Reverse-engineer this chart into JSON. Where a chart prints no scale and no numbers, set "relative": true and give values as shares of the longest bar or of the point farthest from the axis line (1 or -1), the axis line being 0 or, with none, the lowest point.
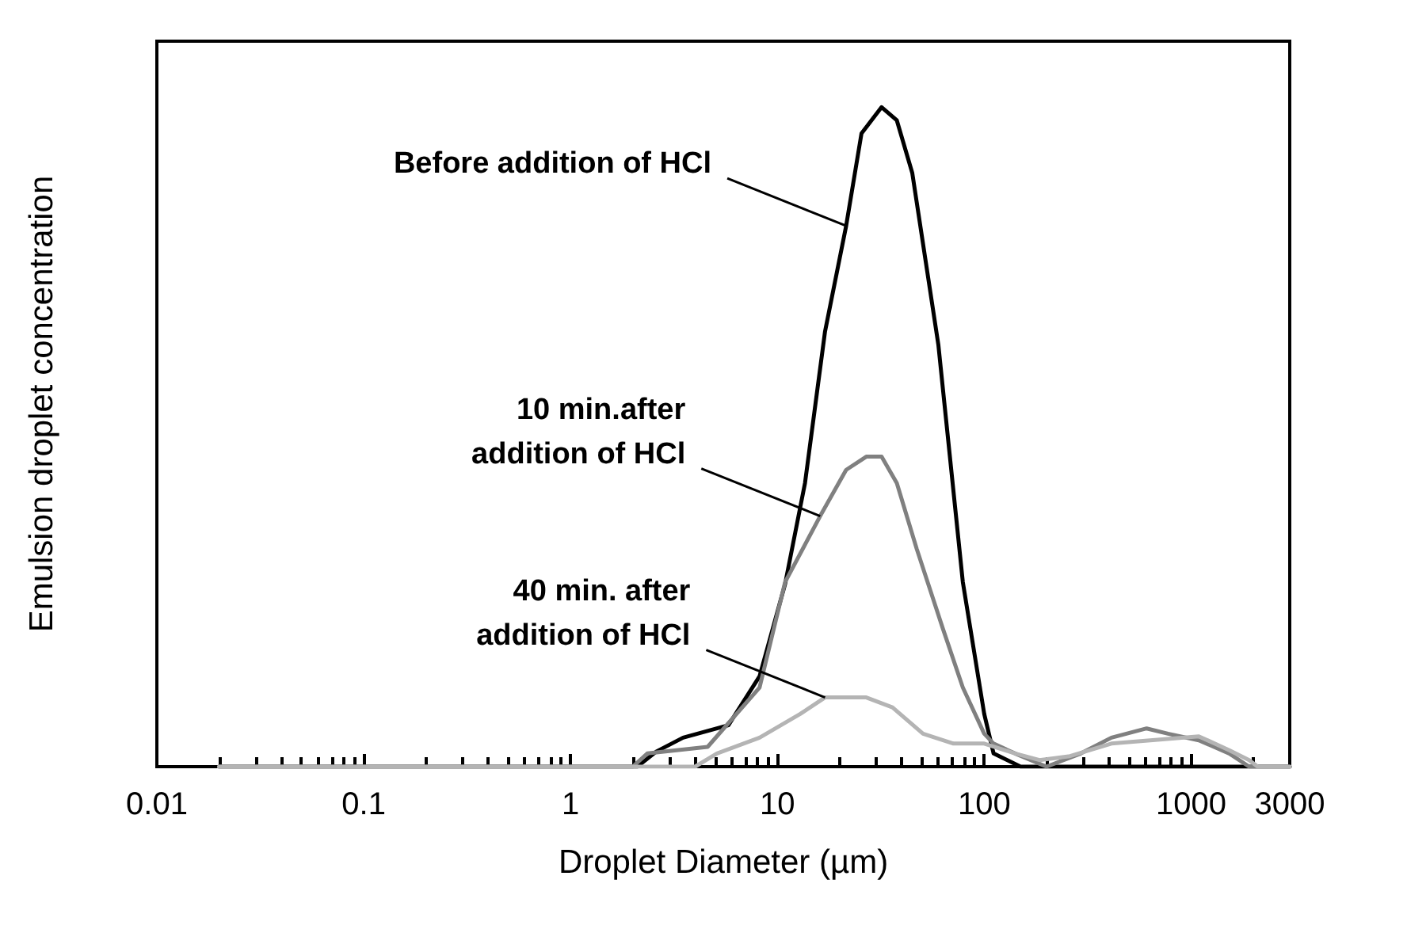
{
  "chart_data": {
    "type": "line",
    "relative": true,
    "xlabel": "Droplet Diameter (µm)",
    "ylabel": "Emulsion droplet concentration",
    "log": "x",
    "xlim": [
      0.01,
      3000
    ],
    "xticks": [
      0.01,
      0.1,
      1,
      10,
      100,
      1000,
      3000
    ],
    "grid": false,
    "marker": "none",
    "line_style": "solid",
    "series": [
      {
        "color": "#000000",
        "x": [
          0.02,
          2.1,
          2.6,
          3.5,
          5.8,
          8.2,
          10.9,
          13.6,
          17,
          21.5,
          25.5,
          31.9,
          37.8,
          44.9,
          60,
          78.8,
          100,
          111,
          150,
          3000
        ],
        "values": [
          0,
          0,
          0.023,
          0.044,
          0.063,
          0.137,
          0.277,
          0.43,
          0.66,
          0.82,
          0.96,
          1.0,
          0.98,
          0.9,
          0.64,
          0.28,
          0.08,
          0.02,
          0,
          0
        ]
      },
      {
        "color": "#808080",
        "x": [
          0.02,
          2.0,
          2.35,
          4.6,
          8.2,
          10.9,
          16.1,
          21.5,
          26.9,
          31.9,
          37.8,
          47.2,
          63,
          78.8,
          100,
          111,
          141,
          200,
          293,
          412,
          610,
          774,
          1090,
          1530,
          1910,
          3000
        ],
        "values": [
          0,
          0,
          0.02,
          0.03,
          0.12,
          0.28,
          0.38,
          0.45,
          0.47,
          0.47,
          0.43,
          0.33,
          0.21,
          0.12,
          0.05,
          0.035,
          0.02,
          0,
          0.02,
          0.044,
          0.058,
          0.05,
          0.04,
          0.02,
          0,
          0
        ]
      },
      {
        "color": "#b4b4b4",
        "x": [
          0.02,
          4.0,
          5.1,
          8.2,
          12.9,
          17,
          26.9,
          36,
          50.6,
          71,
          100,
          141,
          185,
          260,
          412,
          1090,
          1530,
          1910,
          2100,
          3000
        ],
        "values": [
          0,
          0,
          0.02,
          0.044,
          0.08,
          0.105,
          0.105,
          0.09,
          0.05,
          0.035,
          0.035,
          0.02,
          0.01,
          0.016,
          0.035,
          0.046,
          0.025,
          0.01,
          0,
          0
        ]
      }
    ],
    "annotations": [
      {
        "text": "Before addition of HCl",
        "x": 21.5,
        "y": 0.82
      },
      {
        "text": "10 min.after\naddition of HCl",
        "x": 16.1,
        "y": 0.38
      },
      {
        "text": "40 min. after\naddition of HCl",
        "x": 17,
        "y": 0.105
      }
    ]
  }
}
